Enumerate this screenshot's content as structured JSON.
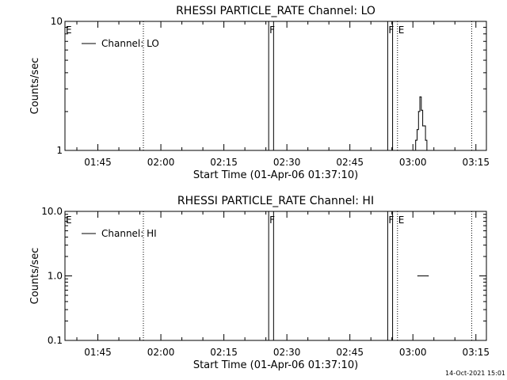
{
  "chart_data": [
    {
      "type": "line",
      "title": "RHESSI PARTICLE_RATE Channel: LO",
      "xlabel": "Start Time (01-Apr-06 01:37:10)",
      "ylabel": "Counts/sec",
      "y_scale": "log",
      "ylim": [
        1,
        10
      ],
      "y_ticks": [
        {
          "v": 1,
          "label": "1"
        },
        {
          "v": 10,
          "label": "10"
        }
      ],
      "xlim": [
        "01:37:10",
        "03:17:30"
      ],
      "x_ticks": [
        {
          "t": "01:45",
          "label": "01:45"
        },
        {
          "t": "02:00",
          "label": "02:00"
        },
        {
          "t": "02:15",
          "label": "02:15"
        },
        {
          "t": "02:30",
          "label": "02:30"
        },
        {
          "t": "02:45",
          "label": "02:45"
        },
        {
          "t": "03:00",
          "label": "03:00"
        },
        {
          "t": "03:15",
          "label": "03:15"
        }
      ],
      "legend": {
        "position": "top-left",
        "entries": [
          "Channel: LO"
        ]
      },
      "markers": [
        {
          "label": "E",
          "t": "01:37:10",
          "style": "solid"
        },
        {
          "label": "",
          "t": "01:55:50",
          "style": "dotted"
        },
        {
          "label": "F",
          "t": "02:25:40",
          "style": "solid"
        },
        {
          "label": "",
          "t": "02:26:50",
          "style": "solid"
        },
        {
          "label": "F",
          "t": "02:54:00",
          "style": "solid"
        },
        {
          "label": "",
          "t": "02:55:10",
          "style": "solid"
        },
        {
          "label": "E",
          "t": "02:56:20",
          "style": "dotted"
        },
        {
          "label": "",
          "t": "03:14:00",
          "style": "dotted"
        }
      ],
      "series": [
        {
          "name": "Channel: LO",
          "points": [
            {
              "t": "03:00:20",
              "y": 1.0
            },
            {
              "t": "03:00:40",
              "y": 1.2
            },
            {
              "t": "03:01:00",
              "y": 1.45
            },
            {
              "t": "03:01:20",
              "y": 2.0
            },
            {
              "t": "03:01:40",
              "y": 2.6
            },
            {
              "t": "03:02:00",
              "y": 2.05
            },
            {
              "t": "03:02:20",
              "y": 1.55
            },
            {
              "t": "03:02:40",
              "y": 1.55
            },
            {
              "t": "03:03:00",
              "y": 1.2
            },
            {
              "t": "03:03:20",
              "y": 1.0
            }
          ]
        }
      ]
    },
    {
      "type": "line",
      "title": "RHESSI PARTICLE_RATE Channel: HI",
      "xlabel": "Start Time (01-Apr-06 01:37:10)",
      "ylabel": "Counts/sec",
      "y_scale": "log",
      "ylim": [
        0.1,
        10
      ],
      "y_ticks": [
        {
          "v": 0.1,
          "label": "0.1"
        },
        {
          "v": 1,
          "label": "1.0"
        },
        {
          "v": 10,
          "label": "10.0"
        }
      ],
      "xlim": [
        "01:37:10",
        "03:17:30"
      ],
      "x_ticks": [
        {
          "t": "01:45",
          "label": "01:45"
        },
        {
          "t": "02:00",
          "label": "02:00"
        },
        {
          "t": "02:15",
          "label": "02:15"
        },
        {
          "t": "02:30",
          "label": "02:30"
        },
        {
          "t": "02:45",
          "label": "02:45"
        },
        {
          "t": "03:00",
          "label": "03:00"
        },
        {
          "t": "03:15",
          "label": "03:15"
        }
      ],
      "legend": {
        "position": "top-left",
        "entries": [
          "Channel: HI"
        ]
      },
      "markers": [
        {
          "label": "E",
          "t": "01:37:10",
          "style": "solid"
        },
        {
          "label": "",
          "t": "01:55:50",
          "style": "dotted"
        },
        {
          "label": "F",
          "t": "02:25:40",
          "style": "solid"
        },
        {
          "label": "",
          "t": "02:26:50",
          "style": "solid"
        },
        {
          "label": "F",
          "t": "02:54:00",
          "style": "solid"
        },
        {
          "label": "",
          "t": "02:55:10",
          "style": "solid"
        },
        {
          "label": "E",
          "t": "02:56:20",
          "style": "dotted"
        },
        {
          "label": "",
          "t": "03:14:00",
          "style": "dotted"
        }
      ],
      "series": [
        {
          "name": "Channel: HI",
          "points": [
            {
              "t": "03:01:10",
              "y": 1.0
            },
            {
              "t": "03:03:40",
              "y": 1.0
            }
          ]
        }
      ]
    }
  ],
  "footer": {
    "timestamp": "14-Oct-2021 15:01"
  },
  "colors": {
    "background": "#ffffff",
    "foreground": "#000000"
  }
}
